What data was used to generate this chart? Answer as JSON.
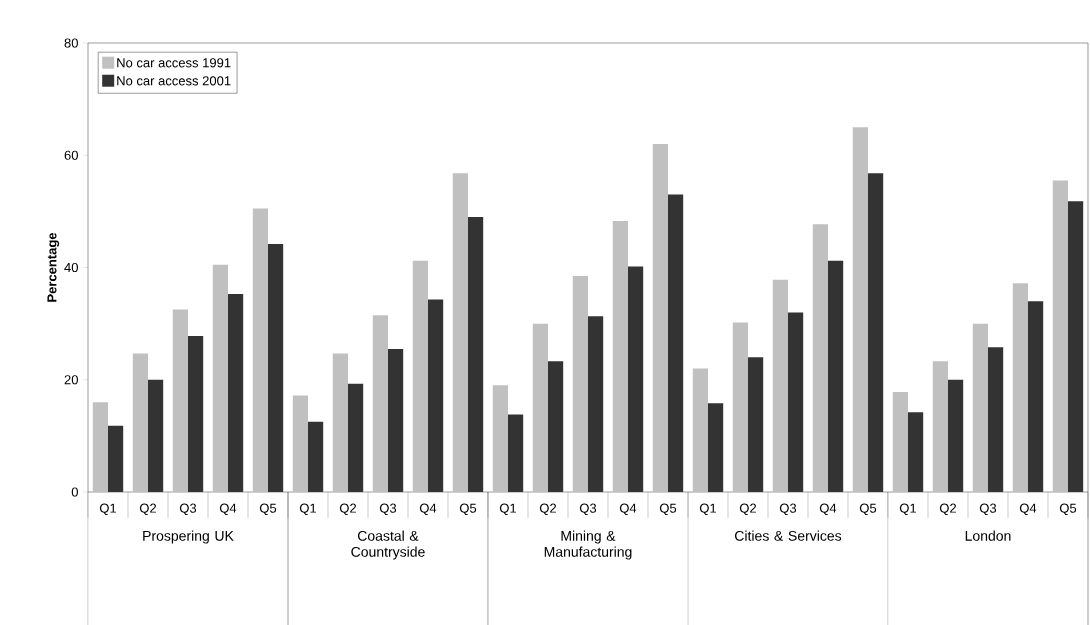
{
  "chart_data": {
    "type": "bar",
    "ylabel": "Percentage",
    "categories": [
      "Q1",
      "Q2",
      "Q3",
      "Q4",
      "Q5",
      "Q1",
      "Q2",
      "Q3",
      "Q4",
      "Q5",
      "Q1",
      "Q2",
      "Q3",
      "Q4",
      "Q5",
      "Q1",
      "Q2",
      "Q3",
      "Q4",
      "Q5",
      "Q1",
      "Q2",
      "Q3",
      "Q4",
      "Q5"
    ],
    "series": [
      {
        "name": "No car access 1991",
        "color": "#c0c0c0",
        "values": [
          16,
          24.7,
          32.5,
          40.5,
          50.5,
          17.2,
          24.7,
          31.5,
          41.2,
          56.8,
          19,
          30,
          38.5,
          48.3,
          62,
          22,
          30.2,
          37.8,
          47.7,
          65,
          17.8,
          23.3,
          30,
          37.2,
          55.5
        ]
      },
      {
        "name": "No car access 2001",
        "color": "#333333",
        "values": [
          11.8,
          20,
          27.8,
          35.3,
          44.2,
          12.5,
          19.3,
          25.5,
          34.3,
          49,
          13.8,
          23.3,
          31.3,
          40.2,
          53,
          15.8,
          24,
          32,
          41.2,
          56.8,
          14.2,
          20,
          25.8,
          34,
          51.8
        ]
      }
    ],
    "ylim": [
      0,
      80
    ],
    "yticks": [
      0,
      20,
      40,
      60,
      80
    ],
    "legend": "top left",
    "annotations": [
      "Prospering UK",
      "Coastal & Countryside",
      "Mining & Manufacturing",
      "Cities & Services",
      "London"
    ]
  }
}
